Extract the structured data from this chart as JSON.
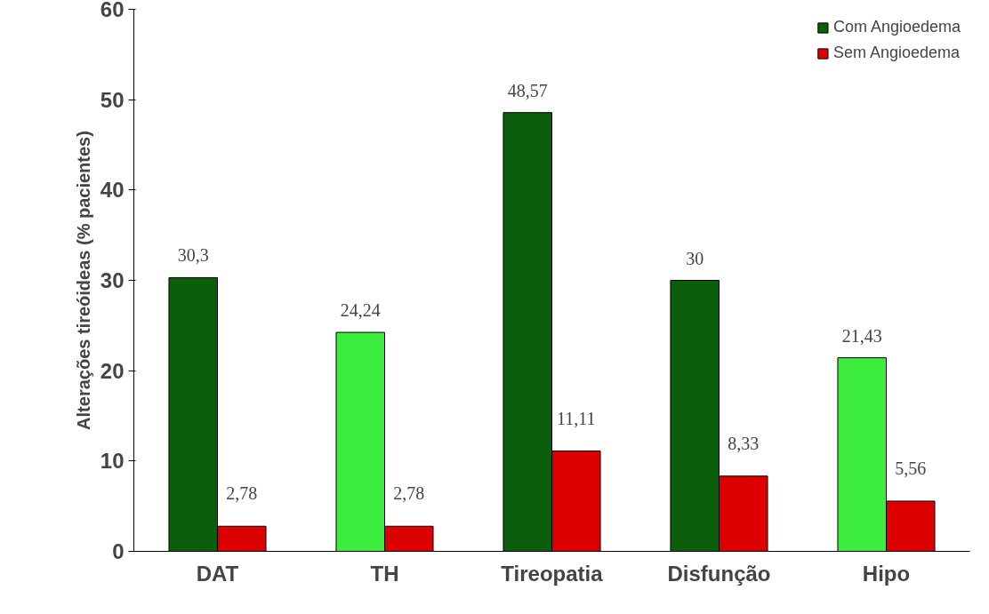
{
  "chart_data": {
    "type": "bar",
    "ylabel": "Alterações tireóideas (% pacientes)",
    "categories": [
      "DAT",
      "TH",
      "Tireopatia",
      "Disfunção",
      "Hipo"
    ],
    "series": [
      {
        "name": "Com Angioedema",
        "colors": [
          "#0b5e0b",
          "#3ded3d",
          "#0b5e0b",
          "#0b5e0b",
          "#3ded3d"
        ],
        "values": [
          30.3,
          24.24,
          48.57,
          30,
          21.43
        ],
        "value_labels": [
          "30,3",
          "24,24",
          "48,57",
          "30",
          "21,43"
        ]
      },
      {
        "name": "Sem Angioedema",
        "color": "#dd0000",
        "values": [
          2.78,
          2.78,
          11.11,
          8.33,
          5.56
        ],
        "value_labels": [
          "2,78",
          "2,78",
          "11,11",
          "8,33",
          "5,56"
        ]
      }
    ],
    "ylim": [
      0,
      60
    ],
    "yticks": [
      0,
      10,
      20,
      30,
      40,
      50,
      60
    ],
    "grid": false,
    "legend": "top right"
  }
}
